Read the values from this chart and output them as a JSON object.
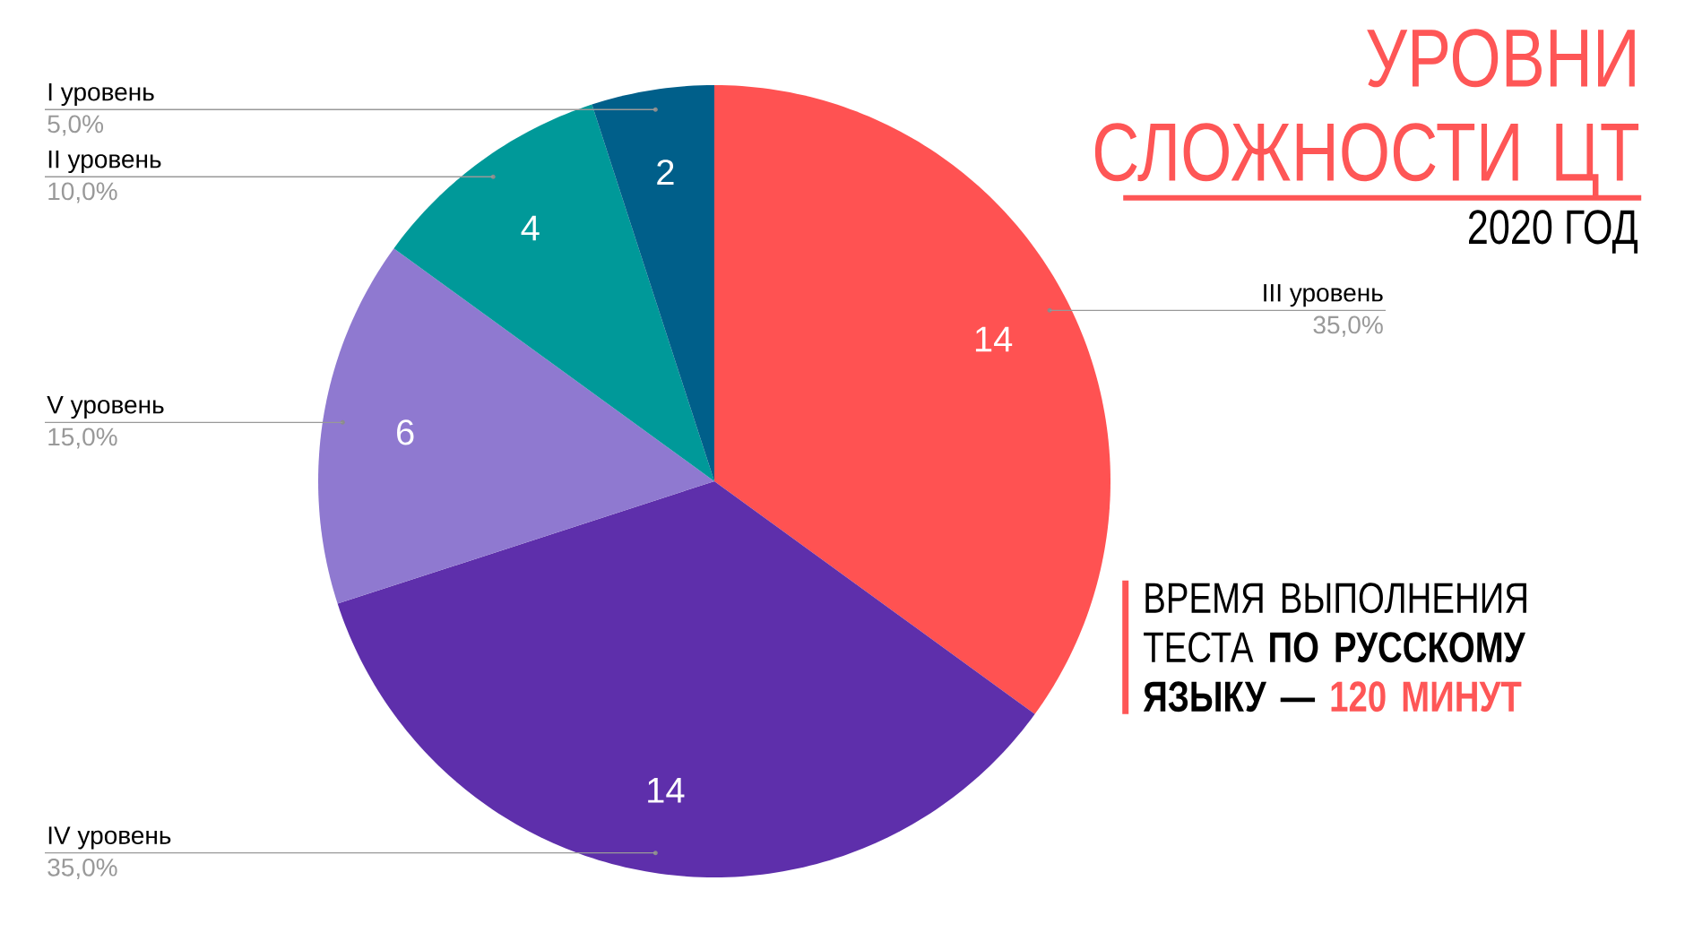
{
  "chart_data": {
    "type": "pie",
    "title": "УРОВНИ СЛОЖНОСТИ ЦТ",
    "subtitle": "2020 ГОД",
    "categories": [
      "III уровень",
      "IV уровень",
      "V уровень",
      "II уровень",
      "I уровень"
    ],
    "values": [
      14,
      14,
      6,
      4,
      2
    ],
    "colors": [
      "#ff5252",
      "#5e2fab",
      "#8f79d0",
      "#009999",
      "#005f8a"
    ],
    "data_labels": true,
    "annotations": [
      {
        "text": "35,0%",
        "x": "III уровень"
      },
      {
        "text": "35,0%",
        "x": "IV уровень"
      },
      {
        "text": "15,0%",
        "x": "V уровень"
      },
      {
        "text": "10,0%",
        "x": "II уровень"
      },
      {
        "text": "5,0%",
        "x": "I уровень"
      },
      "ВРЕМЯ ВЫПОЛНЕНИЯ ТЕСТА",
      "ПО РУССКОМУ ЯЗЫКУ —",
      "120 МИНУТ"
    ]
  }
}
